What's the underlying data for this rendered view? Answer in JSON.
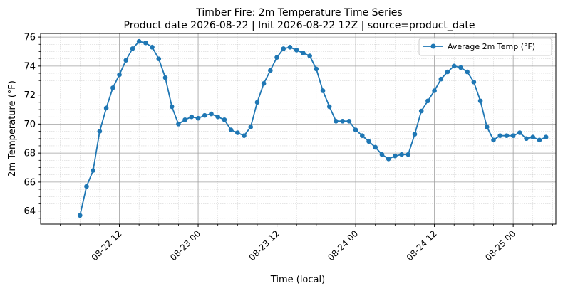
{
  "chart_data": {
    "type": "line",
    "title": "Timber Fire: 2m Temperature Time Series",
    "subtitle": "Product date 2026-08-22 | Init 2026-08-22 12Z | source=product_date",
    "xlabel": "Time (local)",
    "ylabel": "2m Temperature (°F)",
    "x_ticks": [
      {
        "label": "08-22 12",
        "x": 12
      },
      {
        "label": "08-23 00",
        "x": 24
      },
      {
        "label": "08-23 12",
        "x": 36
      },
      {
        "label": "08-24 00",
        "x": 48
      },
      {
        "label": "08-24 12",
        "x": 60
      },
      {
        "label": "08-25 00",
        "x": 72
      }
    ],
    "y_ticks": [
      64,
      66,
      68,
      70,
      72,
      74,
      76
    ],
    "xlim": [
      0,
      78.5
    ],
    "ylim": [
      63.1,
      76.25
    ],
    "grid": true,
    "legend": "top-right",
    "series": [
      {
        "name": "Average 2m Temp (°F)",
        "color": "#1f77b4",
        "x": [
          6,
          7,
          8,
          9,
          10,
          11,
          12,
          13,
          14,
          15,
          16,
          17,
          18,
          19,
          20,
          21,
          22,
          23,
          24,
          25,
          26,
          27,
          28,
          29,
          30,
          31,
          32,
          33,
          34,
          35,
          36,
          37,
          38,
          39,
          40,
          41,
          42,
          43,
          44,
          45,
          46,
          47,
          48,
          49,
          50,
          51,
          52,
          53,
          54,
          55,
          56,
          57,
          58,
          59,
          60,
          61,
          62,
          63,
          64,
          65,
          66,
          67,
          68,
          69,
          70,
          71,
          72,
          73,
          74,
          75,
          76,
          77
        ],
        "y": [
          63.7,
          65.7,
          66.8,
          69.5,
          71.1,
          72.5,
          73.4,
          74.4,
          75.2,
          75.7,
          75.6,
          75.3,
          74.5,
          73.2,
          71.2,
          70.0,
          70.3,
          70.5,
          70.4,
          70.6,
          70.7,
          70.5,
          70.3,
          69.6,
          69.4,
          69.2,
          69.8,
          71.5,
          72.8,
          73.7,
          74.6,
          75.2,
          75.3,
          75.1,
          74.9,
          74.7,
          73.8,
          72.3,
          71.2,
          70.2,
          70.2,
          70.2,
          69.6,
          69.2,
          68.8,
          68.4,
          67.9,
          67.6,
          67.8,
          67.9,
          67.9,
          69.3,
          70.9,
          71.6,
          72.3,
          73.1,
          73.6,
          74.0,
          73.9,
          73.6,
          72.9,
          71.6,
          69.8,
          68.9,
          69.2,
          69.2,
          69.2,
          69.4,
          69.0,
          69.1,
          68.9,
          69.1
        ]
      }
    ]
  }
}
